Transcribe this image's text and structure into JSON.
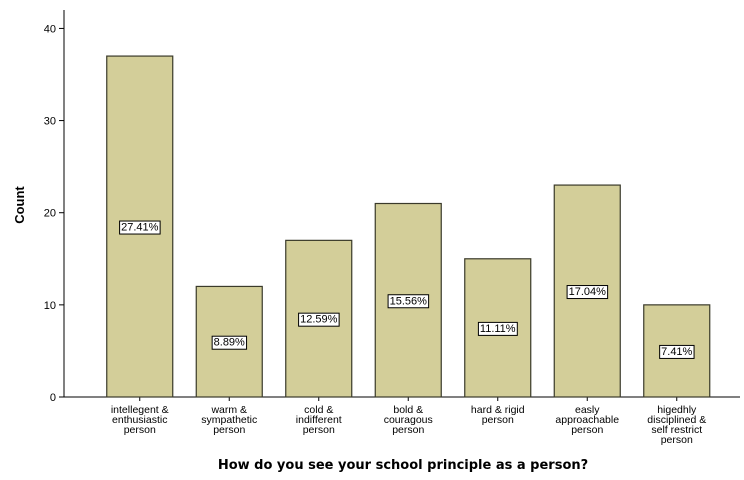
{
  "chart_data": {
    "type": "bar",
    "title": "",
    "xlabel": "How do you see your school principle as a person?",
    "ylabel": "Count",
    "ylim": [
      0,
      42
    ],
    "yticks": [
      0,
      10,
      20,
      30,
      40
    ],
    "grid": false,
    "categories": [
      [
        "intellegent &",
        "enthusiastic",
        "person"
      ],
      [
        "warm &",
        "sympathetic",
        "person"
      ],
      [
        "cold &",
        "indifferent",
        "person"
      ],
      [
        "bold &",
        "couragous",
        "person"
      ],
      [
        "hard & rigid",
        "person"
      ],
      [
        "easly",
        "approachable",
        "person"
      ],
      [
        "higedhly",
        "disciplined &",
        "self restrict",
        "person"
      ]
    ],
    "values": [
      37,
      12,
      17,
      21,
      15,
      23,
      10
    ],
    "percent_labels": [
      "27.41%",
      "8.89%",
      "12.59%",
      "15.56%",
      "11.11%",
      "17.04%",
      "7.41%"
    ],
    "colors": {
      "bar_fill": "#d3ce99",
      "bar_stroke": "#3a3a2a",
      "axis": "#000000",
      "label_box_fill": "#ffffff",
      "label_box_stroke": "#000000",
      "text": "#000000"
    }
  }
}
